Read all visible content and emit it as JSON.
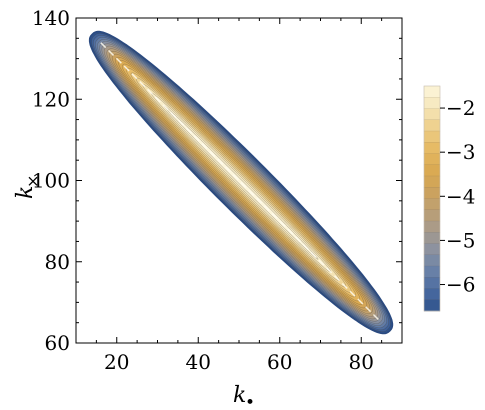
{
  "chart_data": {
    "type": "heatmap",
    "subtype": "filled-contour",
    "title": "",
    "xlabel": "k",
    "xlabel_subscript": "•",
    "ylabel": "k",
    "ylabel_subscript": "×",
    "xlim": [
      10,
      90
    ],
    "ylim": [
      60,
      140
    ],
    "xticks": [
      20,
      40,
      60,
      80
    ],
    "yticks": [
      60,
      80,
      100,
      120,
      140
    ],
    "x_minor_step": 5,
    "y_minor_step": 5,
    "grid": false,
    "region": {
      "endpoint_a": {
        "x": 14,
        "y": 136
      },
      "endpoint_b": {
        "x": 87,
        "y": 63
      },
      "ridge_line_value": -1.6
    },
    "colorbar": {
      "ticks": [
        -2,
        -3,
        -4,
        -5,
        -6
      ],
      "tick_labels": [
        "−2",
        "−3",
        "−4",
        "−5",
        "−6"
      ],
      "range": [
        -6.6,
        -1.5
      ],
      "levels": 20,
      "colors": [
        "#2e528c",
        "#4a6aa0",
        "#6a82a8",
        "#8c92a0",
        "#a89a8a",
        "#bea071",
        "#cfa35a",
        "#dcab52",
        "#e6bb66",
        "#eed08c",
        "#f6e8bd",
        "#fdf6dc"
      ],
      "placement": "right"
    }
  }
}
